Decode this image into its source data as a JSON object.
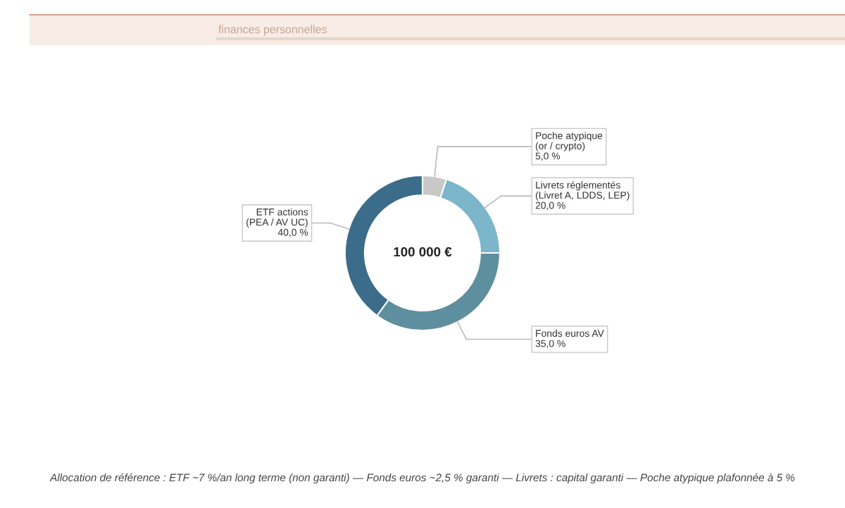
{
  "chart_data": {
    "type": "donut",
    "subtitle": "finances personnelles",
    "categories": [
      "Poche atypique\n(or / crypto)",
      "Livrets réglementés\n(Livret A, LDDS, LEP)",
      "Fonds euros AV",
      "ETF actions\n(PEA / AV UC)"
    ],
    "values": [
      5,
      20,
      35,
      40
    ],
    "value_labels": [
      "5,0 %",
      "20,0 %",
      "35,0 %",
      "40,0 %"
    ],
    "colors": [
      "#c8c8c8",
      "#7bb6cb",
      "#5e8f9f",
      "#3b6c8a"
    ],
    "annotations": [
      "100 000 €",
      "Allocation de référence : ETF ~7 %/an long terme (non garanti) — Fonds euros ~2,5 % garanti — Livrets : capital garanti — Poche atypique plafonnée à 5 %"
    ]
  }
}
